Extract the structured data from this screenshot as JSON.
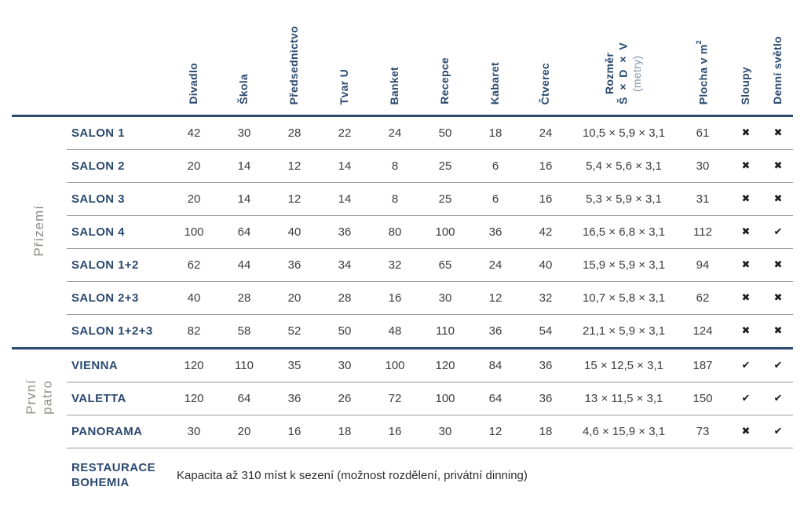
{
  "colors": {
    "navy_accent": "#2b4a6f",
    "thin_rule": "#9a9a9a",
    "body_text": "#3c3c3c",
    "floor_label": "#908d86",
    "unit_text": "#8295aa",
    "mark": "#1b1b1b"
  },
  "marks": {
    "yes": "✔",
    "no": "✖"
  },
  "table": {
    "capacity_columns": [
      {
        "key": "divadlo",
        "label": "Divadlo"
      },
      {
        "key": "skola",
        "label": "Škola"
      },
      {
        "key": "predsednictvo",
        "label": "Předsednictvo"
      },
      {
        "key": "tvar-u",
        "label": "Tvar U"
      },
      {
        "key": "banket",
        "label": "Banket"
      },
      {
        "key": "recepce",
        "label": "Recepce"
      },
      {
        "key": "kabaret",
        "label": "Kabaret"
      },
      {
        "key": "ctverec",
        "label": "Čtverec"
      }
    ],
    "dimension_column": {
      "key": "rozmer",
      "line1": "Rozměr",
      "line2": "Š × D × V",
      "line3": "(metry)"
    },
    "area_column": {
      "key": "plocha",
      "label": "Plocha v m",
      "superscript": "2"
    },
    "mark_columns": [
      {
        "key": "sloupy",
        "label": "Sloupy"
      },
      {
        "key": "denni-svetlo",
        "label": "Denní světlo"
      }
    ],
    "groups": [
      {
        "floor_key": "prizemi",
        "floor_lines": [
          "Přízemí"
        ],
        "rows": [
          {
            "name": "SALON 1",
            "capacities": [
              "42",
              "30",
              "28",
              "22",
              "24",
              "50",
              "18",
              "24"
            ],
            "dimensions": "10,5 × 5,9 × 3,1",
            "area": "61",
            "columns": false,
            "daylight": false
          },
          {
            "name": "SALON 2",
            "capacities": [
              "20",
              "14",
              "12",
              "14",
              "8",
              "25",
              "6",
              "16"
            ],
            "dimensions": "5,4 × 5,6 × 3,1",
            "area": "30",
            "columns": false,
            "daylight": false
          },
          {
            "name": "SALON 3",
            "capacities": [
              "20",
              "14",
              "12",
              "14",
              "8",
              "25",
              "6",
              "16"
            ],
            "dimensions": "5,3 × 5,9 × 3,1",
            "area": "31",
            "columns": false,
            "daylight": false
          },
          {
            "name": "SALON 4",
            "capacities": [
              "100",
              "64",
              "40",
              "36",
              "80",
              "100",
              "36",
              "42"
            ],
            "dimensions": "16,5 × 6,8 × 3,1",
            "area": "112",
            "columns": false,
            "daylight": true
          },
          {
            "name": "SALON 1+2",
            "capacities": [
              "62",
              "44",
              "36",
              "34",
              "32",
              "65",
              "24",
              "40"
            ],
            "dimensions": "15,9 × 5,9 × 3,1",
            "area": "94",
            "columns": false,
            "daylight": false
          },
          {
            "name": "SALON 2+3",
            "capacities": [
              "40",
              "28",
              "20",
              "28",
              "16",
              "30",
              "12",
              "32"
            ],
            "dimensions": "10,7 × 5,8 × 3,1",
            "area": "62",
            "columns": false,
            "daylight": false
          },
          {
            "name": "SALON 1+2+3",
            "capacities": [
              "82",
              "58",
              "52",
              "50",
              "48",
              "110",
              "36",
              "54"
            ],
            "dimensions": "21,1 × 5,9 × 3,1",
            "area": "124",
            "columns": false,
            "daylight": false
          }
        ]
      },
      {
        "floor_key": "prvni-patro",
        "floor_lines": [
          "První",
          "patro"
        ],
        "rows": [
          {
            "name": "VIENNA",
            "capacities": [
              "120",
              "110",
              "35",
              "30",
              "100",
              "120",
              "84",
              "36"
            ],
            "dimensions": "15 × 12,5 × 3,1",
            "area": "187",
            "columns": true,
            "daylight": true
          },
          {
            "name": "VALETTA",
            "capacities": [
              "120",
              "64",
              "36",
              "26",
              "72",
              "100",
              "64",
              "36"
            ],
            "dimensions": "13 × 11,5 × 3,1",
            "area": "150",
            "columns": true,
            "daylight": true
          },
          {
            "name": "PANORAMA",
            "capacities": [
              "30",
              "20",
              "16",
              "18",
              "16",
              "30",
              "12",
              "18"
            ],
            "dimensions": "4,6 × 15,9 × 3,1",
            "area": "73",
            "columns": false,
            "daylight": true
          }
        ]
      }
    ],
    "footer": {
      "name_lines": [
        "RESTAURACE",
        "BOHEMIA"
      ],
      "description": "Kapacita až 310 míst k sezení (možnost rozdělení, privátní dinning)"
    }
  }
}
